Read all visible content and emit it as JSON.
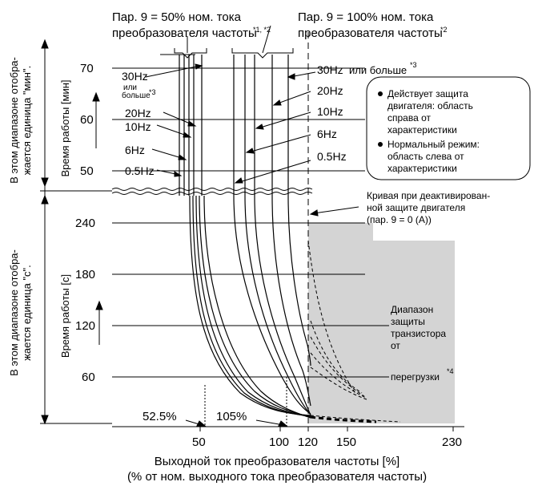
{
  "chart_data": {
    "type": "line",
    "x_axis": {
      "label_line1": "Выходной ток преобразователя частоты [%]",
      "label_line2": "(% от ном. выходного тока преобразователя частоты)",
      "ticks": [
        50,
        100,
        120,
        150,
        230
      ]
    },
    "y_axis_min": {
      "label": "Время работы [мин]",
      "side_label_line1": "В этом диапазоне отобра-",
      "side_label_line2": "жается единица \"мин\".",
      "ticks": [
        50,
        60,
        70
      ]
    },
    "y_axis_s": {
      "label": "Время работы [с]",
      "side_label_line1": "В этом диапазоне отобра-",
      "side_label_line2": "жается единица \"с\".",
      "ticks": [
        60,
        120,
        180,
        240
      ]
    },
    "annotations": {
      "left_header_line1": "Пар. 9 = 50% ном. тока",
      "left_header_line2": "преобразователя частоты",
      "left_header_note": "*1, *2",
      "right_header_line1": "Пар. 9 = 100% ном. тока",
      "right_header_line2": "преобразователя частоты",
      "right_header_note": "*2",
      "left_freqs": [
        "30Hz",
        "20Hz",
        "10Hz",
        "6Hz",
        "0.5Hz"
      ],
      "left_or_more_line1": "или",
      "left_or_more_line2": "больше",
      "left_or_more_note": "*3",
      "right_freq_top": "30Hz",
      "right_freq_top_suffix": "или больше",
      "right_freq_top_note": "*3",
      "right_freqs": [
        "20Hz",
        "10Hz",
        "6Hz",
        "0.5Hz"
      ],
      "box_item1_line1": "Действует защита",
      "box_item1_line2": "двигателя: область",
      "box_item1_line3": "справа от",
      "box_item1_line4": "характеристики",
      "box_item2_line1": "Нормальный режим:",
      "box_item2_line2": "область слева от",
      "box_item2_line3": "характеристики",
      "deactivated_line1": "Кривая при деактивирован-",
      "deactivated_line2": "ной защите двигателя",
      "deactivated_line3": "(пар. 9 = 0 (А))",
      "transistor_line1": "Диапазон",
      "transistor_line2": "защиты",
      "transistor_line3": "транзистора",
      "transistor_line4": "от",
      "transistor_line5": "перегрузки",
      "transistor_note": "*4",
      "label_52_5": "52.5%",
      "label_105": "105%"
    },
    "series": [
      {
        "group": "left",
        "values_top_x": [
          52.5,
          53.0,
          54.0,
          55.0,
          56.5
        ]
      },
      {
        "group": "right",
        "values_top_x": [
          105,
          106,
          107,
          109,
          111
        ]
      }
    ],
    "grid": true,
    "shaded_region_x": [
      120,
      230
    ],
    "colors": {
      "shade": "#d4d4d4",
      "line": "#000000"
    }
  }
}
